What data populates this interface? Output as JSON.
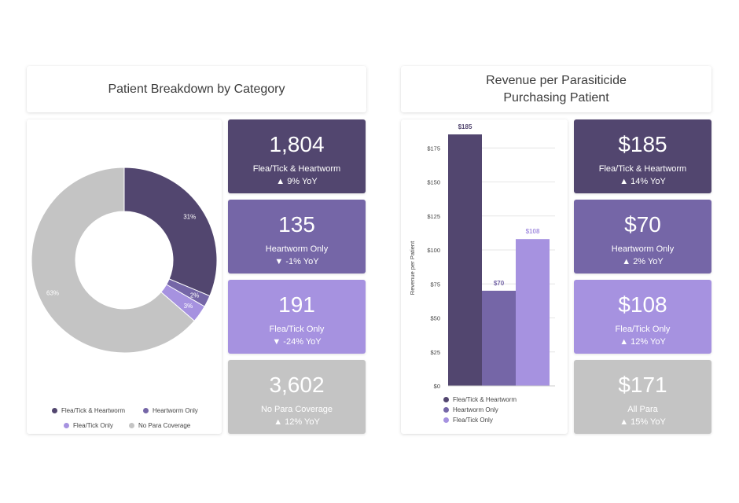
{
  "colors": {
    "dark": "#52466f",
    "mid": "#7566a7",
    "light": "#a692e0",
    "grey": "#c4c4c4"
  },
  "left_panel": {
    "title": "Patient Breakdown by Category",
    "kpis": [
      {
        "value": "1,804",
        "label": "Flea/Tick & Heartworm",
        "yoy": "▲ 9% YoY",
        "color": "#52466f"
      },
      {
        "value": "135",
        "label": "Heartworm Only",
        "yoy": "▼ -1% YoY",
        "color": "#7566a7"
      },
      {
        "value": "191",
        "label": "Flea/Tick Only",
        "yoy": "▼ -24% YoY",
        "color": "#a692e0"
      },
      {
        "value": "3,602",
        "label": "No Para Coverage",
        "yoy": "▲ 12% YoY",
        "color": "#c4c4c4"
      }
    ]
  },
  "right_panel": {
    "title_line1": "Revenue per Parasiticide",
    "title_line2": "Purchasing Patient",
    "kpis": [
      {
        "value": "$185",
        "label": "Flea/Tick & Heartworm",
        "yoy": "▲ 14% YoY",
        "color": "#52466f"
      },
      {
        "value": "$70",
        "label": "Heartworm Only",
        "yoy": "▲ 2% YoY",
        "color": "#7566a7"
      },
      {
        "value": "$108",
        "label": "Flea/Tick Only",
        "yoy": "▲ 12% YoY",
        "color": "#a692e0"
      },
      {
        "value": "$171",
        "label": "All Para",
        "yoy": "▲ 15% YoY",
        "color": "#c4c4c4"
      }
    ]
  },
  "chart_data": [
    {
      "type": "pie",
      "style": "donut",
      "title": "Patient Breakdown by Category",
      "categories": [
        "Flea/Tick & Heartworm",
        "Heartworm Only",
        "Flea/Tick Only",
        "No Para Coverage"
      ],
      "values": [
        31,
        2,
        3,
        63
      ],
      "data_labels": [
        "31%",
        "2%",
        "3%",
        "63%"
      ],
      "colors": [
        "#52466f",
        "#7566a7",
        "#a692e0",
        "#c4c4c4"
      ],
      "legend": [
        "Flea/Tick & Heartworm",
        "Heartworm Only",
        "Flea/Tick Only",
        "No Para Coverage"
      ],
      "legend_position": "bottom"
    },
    {
      "type": "bar",
      "title": "Revenue per Parasiticide Purchasing Patient",
      "categories": [
        "Flea/Tick & Heartworm",
        "Heartworm Only",
        "Flea/Tick Only"
      ],
      "values": [
        185,
        70,
        108
      ],
      "data_labels": [
        "$185",
        "$70",
        "$108"
      ],
      "colors": [
        "#52466f",
        "#7566a7",
        "#a692e0"
      ],
      "xlabel": "",
      "ylabel": "Revenue per Patient",
      "ylim": [
        0,
        185
      ],
      "yticks": [
        0,
        25,
        50,
        75,
        100,
        125,
        150,
        175
      ],
      "ytick_labels": [
        "$0",
        "$25",
        "$50",
        "$75",
        "$100",
        "$125",
        "$150",
        "$175"
      ],
      "grid": true,
      "legend": [
        "Flea/Tick & Heartworm",
        "Heartworm Only",
        "Flea/Tick Only"
      ],
      "legend_position": "bottom-left"
    }
  ]
}
